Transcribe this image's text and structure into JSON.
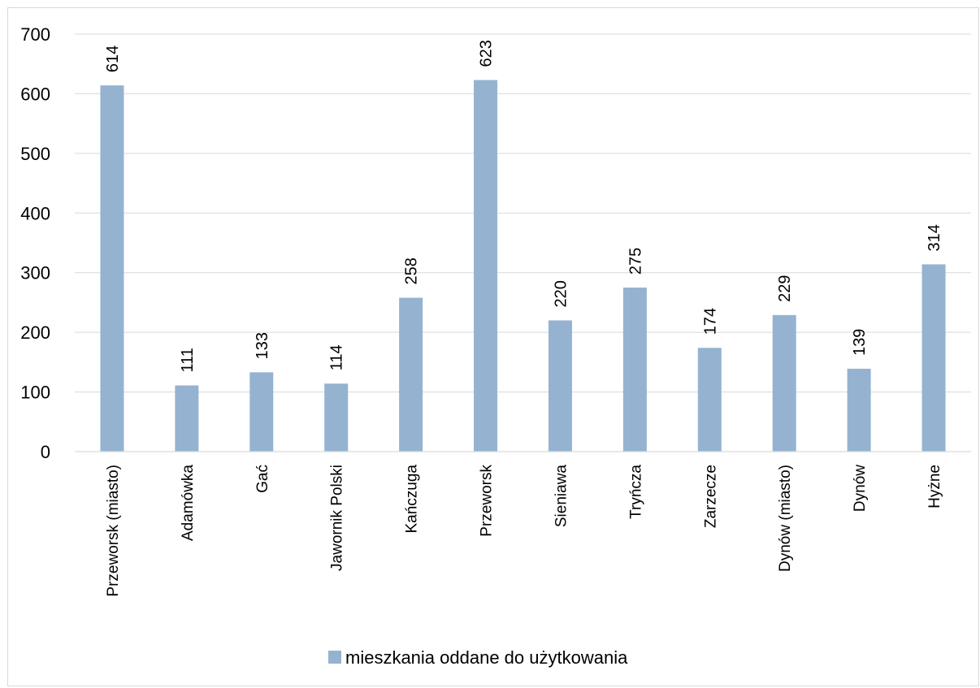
{
  "chart_data": {
    "type": "bar",
    "categories": [
      "Przeworsk (miasto)",
      "Adamówka",
      "Gać",
      "Jawornik Polski",
      "Kańczuga",
      "Przeworsk",
      "Sieniawa",
      "Tryńcza",
      "Zarzecze",
      "Dynów (miasto)",
      "Dynów",
      "Hyżne"
    ],
    "series": [
      {
        "name": "mieszkania oddane do użytkowania",
        "values": [
          614,
          111,
          133,
          114,
          258,
          623,
          220,
          275,
          174,
          229,
          139,
          314
        ],
        "color": "#95b3d0"
      }
    ],
    "y_ticks": [
      "0",
      "100",
      "200",
      "300",
      "400",
      "500",
      "600",
      "700"
    ],
    "ylim": [
      0,
      700
    ],
    "grid": true,
    "legend_position": "bottom",
    "data_labels": true,
    "gridline_color": "#d9d9d9"
  }
}
